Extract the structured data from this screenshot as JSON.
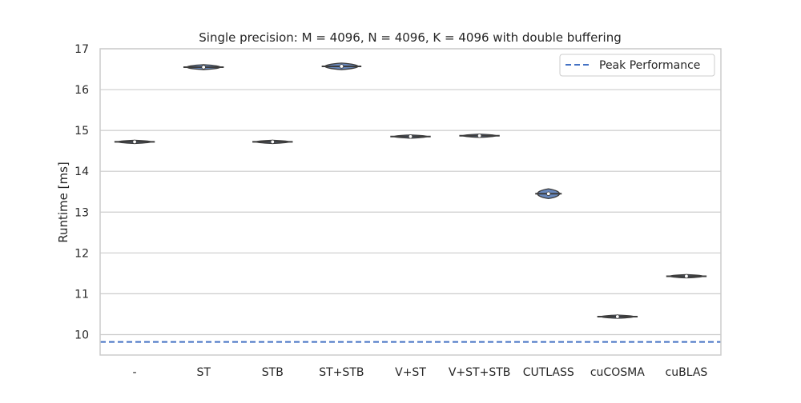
{
  "chart_data": {
    "type": "violin",
    "title": "Single precision: M = 4096, N = 4096, K = 4096 with double buffering",
    "xlabel": "",
    "ylabel": "Runtime [ms]",
    "ylim": [
      9.5,
      17.0
    ],
    "yticks": [
      10,
      11,
      12,
      13,
      14,
      15,
      16,
      17
    ],
    "categories": [
      "-",
      "ST",
      "STB",
      "ST+STB",
      "V+ST",
      "V+ST+STB",
      "CUTLASS",
      "cuCOSMA",
      "cuBLAS"
    ],
    "series": [
      {
        "medians": [
          14.72,
          16.55,
          14.72,
          16.57,
          14.85,
          14.87,
          13.45,
          10.44,
          11.43
        ],
        "spread": [
          0.02,
          0.06,
          0.02,
          0.08,
          0.01,
          0.03,
          0.12,
          0.01,
          0.01
        ],
        "color": "#4c72b0"
      }
    ],
    "reference_lines": [
      {
        "name": "Peak Performance",
        "value": 9.82,
        "style": "dashed",
        "color": "#4472c4"
      }
    ],
    "legend": {
      "position": "top-right",
      "entries": [
        "Peak Performance"
      ]
    },
    "grid": "horizontal"
  }
}
